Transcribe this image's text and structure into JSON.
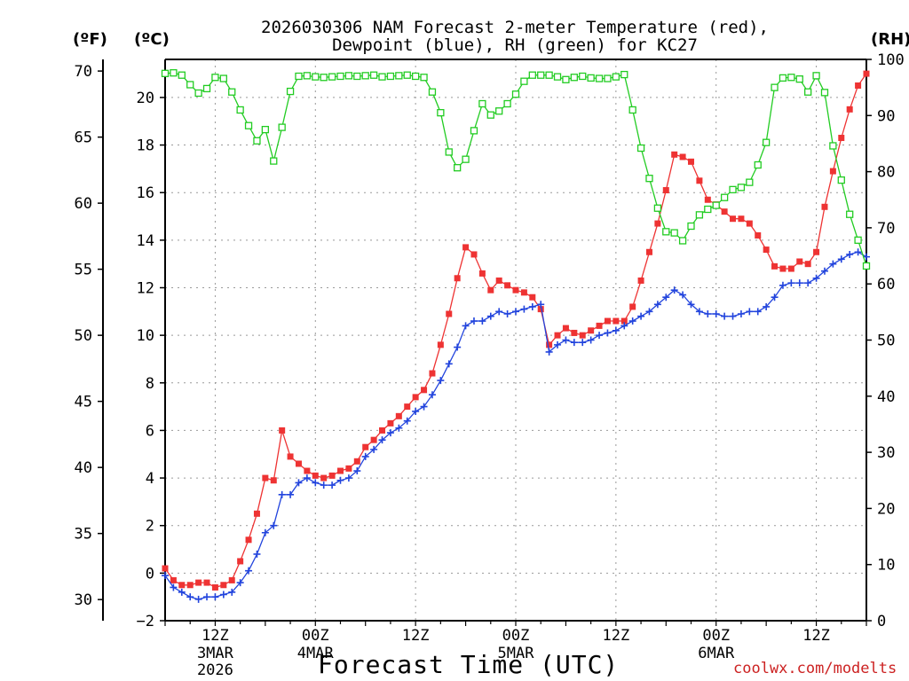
{
  "title_line1": "2026030306 NAM Forecast 2-meter Temperature (red),",
  "title_line2": "Dewpoint (blue), RH (green) for KC27",
  "units": {
    "f": "(ºF)",
    "c": "(ºC)",
    "rh": "(RH)"
  },
  "xlabel": "Forecast Time (UTC)",
  "credit": "coolwx.com/modelts",
  "colors": {
    "temperature": "#ee3333",
    "dewpoint": "#2244dd",
    "rh": "#22cc22",
    "grid": "#999999"
  },
  "chart_data": {
    "type": "line",
    "x_unit": "forecast hour (from 2026-03-03 06Z)",
    "x": [
      0,
      1,
      2,
      3,
      4,
      5,
      6,
      7,
      8,
      9,
      10,
      11,
      12,
      13,
      14,
      15,
      16,
      17,
      18,
      19,
      20,
      21,
      22,
      23,
      24,
      25,
      26,
      27,
      28,
      29,
      30,
      31,
      32,
      33,
      34,
      35,
      36,
      37,
      38,
      39,
      40,
      41,
      42,
      43,
      44,
      45,
      46,
      47,
      48,
      49,
      50,
      51,
      52,
      53,
      54,
      55,
      56,
      57,
      58,
      59,
      60,
      61,
      62,
      63,
      64,
      65,
      66,
      67,
      68,
      69,
      70,
      71,
      72,
      73,
      74,
      75,
      76,
      77,
      78,
      79,
      80,
      81,
      82,
      83,
      84
    ],
    "xlim": [
      0,
      84
    ],
    "x_ticks": [
      {
        "hour": 6,
        "label": "12Z",
        "date": "3MAR",
        "year": "2026"
      },
      {
        "hour": 18,
        "label": "00Z",
        "date": "4MAR",
        "year": ""
      },
      {
        "hour": 30,
        "label": "12Z",
        "date": "",
        "year": ""
      },
      {
        "hour": 42,
        "label": "00Z",
        "date": "5MAR",
        "year": ""
      },
      {
        "hour": 54,
        "label": "12Z",
        "date": "",
        "year": ""
      },
      {
        "hour": 66,
        "label": "00Z",
        "date": "6MAR",
        "year": ""
      },
      {
        "hour": 78,
        "label": "12Z",
        "date": "",
        "year": ""
      }
    ],
    "y_celsius": {
      "min": -2,
      "max": 21.6,
      "ticks": [
        -2,
        0,
        2,
        4,
        6,
        8,
        10,
        12,
        14,
        16,
        18,
        20
      ]
    },
    "y_fahrenheit": {
      "ticks": [
        30,
        35,
        40,
        45,
        50,
        55,
        60,
        65,
        70
      ]
    },
    "y_rh": {
      "min": 0,
      "max": 100,
      "ticks": [
        0,
        10,
        20,
        30,
        40,
        50,
        60,
        70,
        80,
        90,
        100
      ]
    },
    "series": [
      {
        "name": "Temperature",
        "axis": "celsius",
        "values": [
          0.2,
          -0.3,
          -0.5,
          -0.5,
          -0.4,
          -0.4,
          -0.6,
          -0.5,
          -0.3,
          0.5,
          1.4,
          2.5,
          4.0,
          3.9,
          6.0,
          4.9,
          4.6,
          4.3,
          4.1,
          4.0,
          4.1,
          4.3,
          4.4,
          4.7,
          5.3,
          5.6,
          6.0,
          6.3,
          6.6,
          7.0,
          7.4,
          7.7,
          8.4,
          9.6,
          10.9,
          12.4,
          13.7,
          13.4,
          12.6,
          11.9,
          12.3,
          12.1,
          11.9,
          11.8,
          11.6,
          11.1,
          9.6,
          10.0,
          10.3,
          10.1,
          10.0,
          10.2,
          10.4,
          10.6,
          10.6,
          10.6,
          11.2,
          12.3,
          13.5,
          14.7,
          16.1,
          17.6,
          17.5,
          17.3,
          16.5,
          15.7,
          15.5,
          15.2,
          14.9,
          14.9,
          14.7,
          14.2,
          13.6,
          12.9,
          12.8,
          12.8,
          13.1,
          13.0,
          13.5,
          15.4,
          16.9,
          18.3,
          19.5,
          20.5,
          21.0
        ]
      },
      {
        "name": "Dewpoint",
        "axis": "celsius",
        "values": [
          -0.1,
          -0.6,
          -0.8,
          -1.0,
          -1.1,
          -1.0,
          -1.0,
          -0.9,
          -0.8,
          -0.4,
          0.1,
          0.8,
          1.7,
          2.0,
          3.3,
          3.3,
          3.8,
          4.0,
          3.8,
          3.7,
          3.7,
          3.9,
          4.0,
          4.3,
          4.9,
          5.2,
          5.6,
          5.9,
          6.1,
          6.4,
          6.8,
          7.0,
          7.5,
          8.1,
          8.8,
          9.5,
          10.4,
          10.6,
          10.6,
          10.8,
          11.0,
          10.9,
          11.0,
          11.1,
          11.2,
          11.3,
          9.3,
          9.6,
          9.8,
          9.7,
          9.7,
          9.8,
          10.0,
          10.1,
          10.2,
          10.4,
          10.6,
          10.8,
          11.0,
          11.3,
          11.6,
          11.9,
          11.7,
          11.3,
          11.0,
          10.9,
          10.9,
          10.8,
          10.8,
          10.9,
          11.0,
          11.0,
          11.2,
          11.6,
          12.1,
          12.2,
          12.2,
          12.2,
          12.4,
          12.7,
          13.0,
          13.2,
          13.4,
          13.5,
          13.3
        ]
      },
      {
        "name": "RH",
        "axis": "rh",
        "values": [
          97.5,
          97.6,
          97.2,
          95.5,
          94.0,
          94.8,
          96.8,
          96.6,
          94.2,
          91.0,
          88.2,
          85.5,
          87.5,
          81.9,
          87.9,
          94.3,
          97.0,
          97.1,
          96.9,
          96.8,
          96.9,
          97.0,
          97.1,
          97.0,
          97.1,
          97.2,
          96.9,
          97.0,
          97.1,
          97.2,
          97.0,
          96.8,
          94.2,
          90.5,
          83.5,
          80.7,
          82.2,
          87.3,
          92.1,
          90.1,
          90.8,
          92.1,
          93.8,
          96.1,
          97.2,
          97.2,
          97.2,
          96.9,
          96.4,
          96.8,
          97.0,
          96.7,
          96.6,
          96.6,
          96.9,
          97.3,
          91.0,
          84.2,
          78.8,
          73.5,
          69.3,
          69.1,
          67.7,
          70.3,
          72.3,
          73.3,
          74.0,
          75.4,
          76.8,
          77.2,
          78.1,
          81.2,
          85.2,
          95.0,
          96.7,
          96.8,
          96.5,
          94.2,
          97.1,
          94.1,
          84.6,
          78.5,
          72.4,
          67.8,
          63.2
        ]
      }
    ]
  }
}
